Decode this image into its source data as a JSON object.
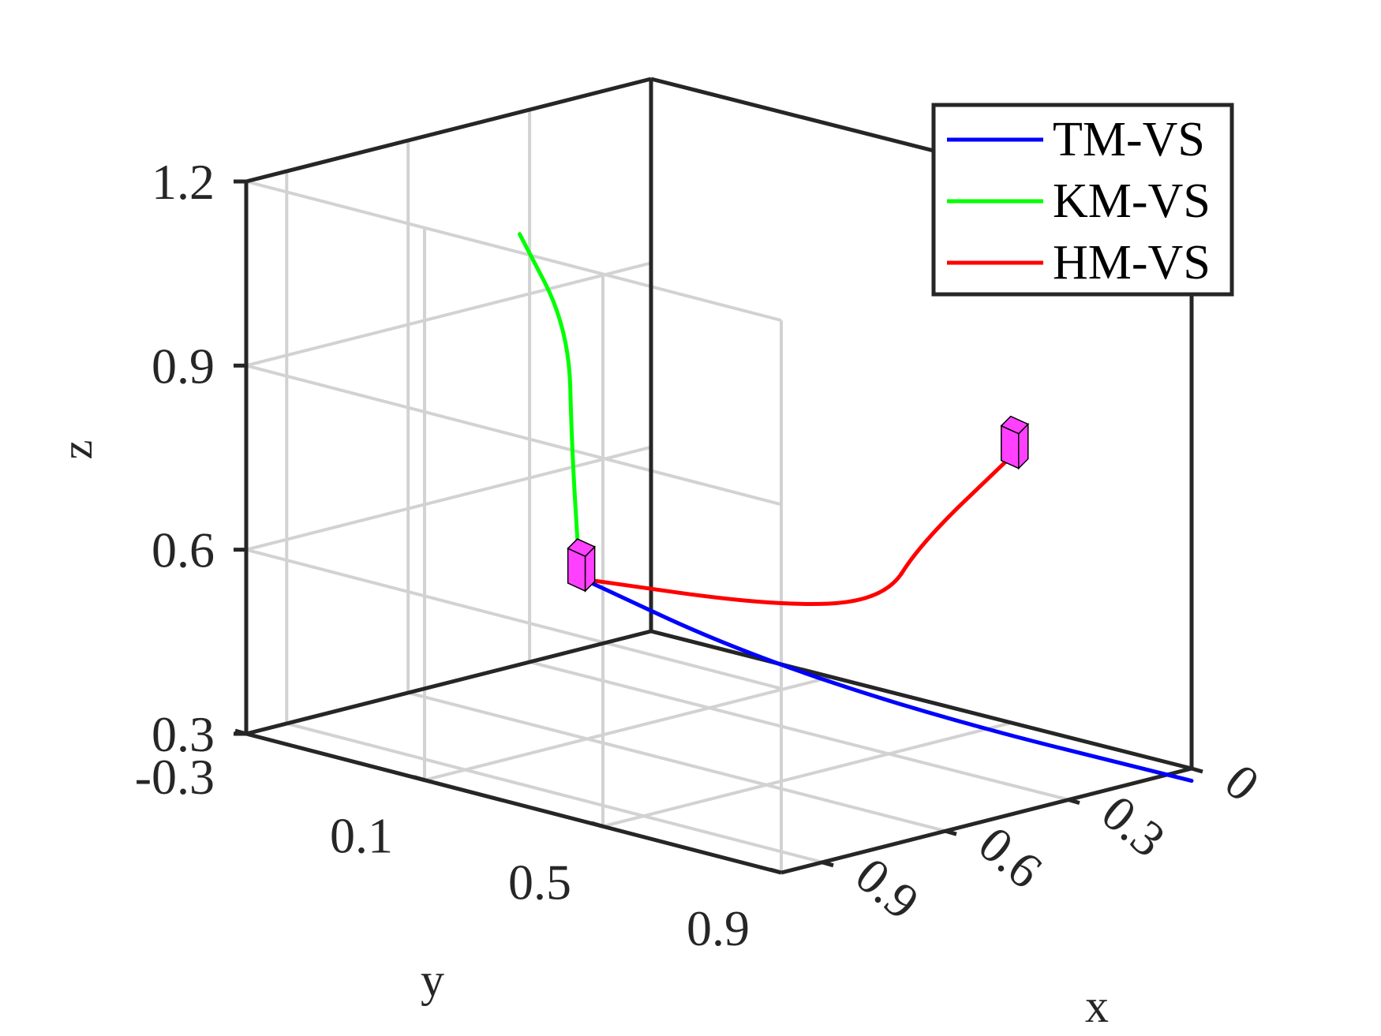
{
  "chart_data": {
    "type": "line",
    "subtype": "3d",
    "title": "",
    "xlabel": "x",
    "ylabel": "y",
    "zlabel": "z",
    "grid": true,
    "legend_position": "top-right",
    "xlim": [
      0,
      1.0
    ],
    "ylim": [
      -0.3,
      0.9
    ],
    "zlim": [
      0.3,
      1.2
    ],
    "x_ticks": [
      "0",
      "0.3",
      "0.6",
      "0.9"
    ],
    "y_ticks": [
      "-0.3",
      "0.1",
      "0.5",
      "0.9"
    ],
    "z_ticks": [
      "0.3",
      "0.6",
      "0.9",
      "1.2"
    ],
    "series": [
      {
        "name": "TM-VS",
        "color": "#0000ff",
        "points": [
          [
            0.84,
            0.31,
            0.64
          ],
          [
            0.64,
            0.47,
            0.52
          ],
          [
            0.36,
            0.66,
            0.4
          ],
          [
            0.0,
            0.9,
            0.28
          ]
        ]
      },
      {
        "name": "KM-VS",
        "color": "#00ff00",
        "points": [
          [
            0.83,
            0.29,
            0.67
          ],
          [
            0.66,
            0.12,
            0.79
          ],
          [
            0.48,
            -0.05,
            0.92
          ],
          [
            0.38,
            -0.25,
            1.02
          ]
        ]
      },
      {
        "name": "HM-VS",
        "color": "#ff0000",
        "points": [
          [
            0.84,
            0.31,
            0.64
          ],
          [
            0.5,
            0.42,
            0.56
          ],
          [
            0.4,
            0.58,
            0.58
          ],
          [
            0.31,
            0.58,
            0.66
          ],
          [
            0.13,
            0.62,
            0.78
          ]
        ]
      }
    ],
    "markers": [
      {
        "name": "start-box",
        "color": "#ff40ff",
        "position": [
          0.84,
          0.3,
          0.66
        ]
      },
      {
        "name": "target-box",
        "color": "#ff40ff",
        "position": [
          0.13,
          0.62,
          0.8
        ]
      }
    ]
  }
}
